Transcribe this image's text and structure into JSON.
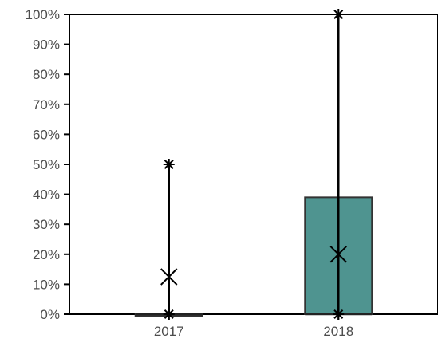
{
  "chart_data": {
    "type": "box",
    "title": "",
    "xlabel": "",
    "ylabel": "",
    "categories": [
      "2017",
      "2018"
    ],
    "ylim": [
      0,
      1
    ],
    "y_ticks": [
      0,
      0.1,
      0.2,
      0.3,
      0.4,
      0.5,
      0.6,
      0.7,
      0.8,
      0.9,
      1.0
    ],
    "y_tick_labels": [
      "0%",
      "10%",
      "20%",
      "30%",
      "40%",
      "50%",
      "60%",
      "70%",
      "80%",
      "90%",
      "100%"
    ],
    "boxes": [
      {
        "category": "2017",
        "min": 0.0,
        "q1": 0.0,
        "median": 0.0,
        "q3": 0.0,
        "max": 0.5,
        "mean": 0.125,
        "fill": "#ffffff"
      },
      {
        "category": "2018",
        "min": 0.0,
        "q1": 0.0,
        "median": 0.0,
        "q3": 0.39,
        "max": 1.0,
        "mean": 0.2,
        "fill": "#4f9490"
      }
    ],
    "grid": false,
    "legend": "none"
  }
}
